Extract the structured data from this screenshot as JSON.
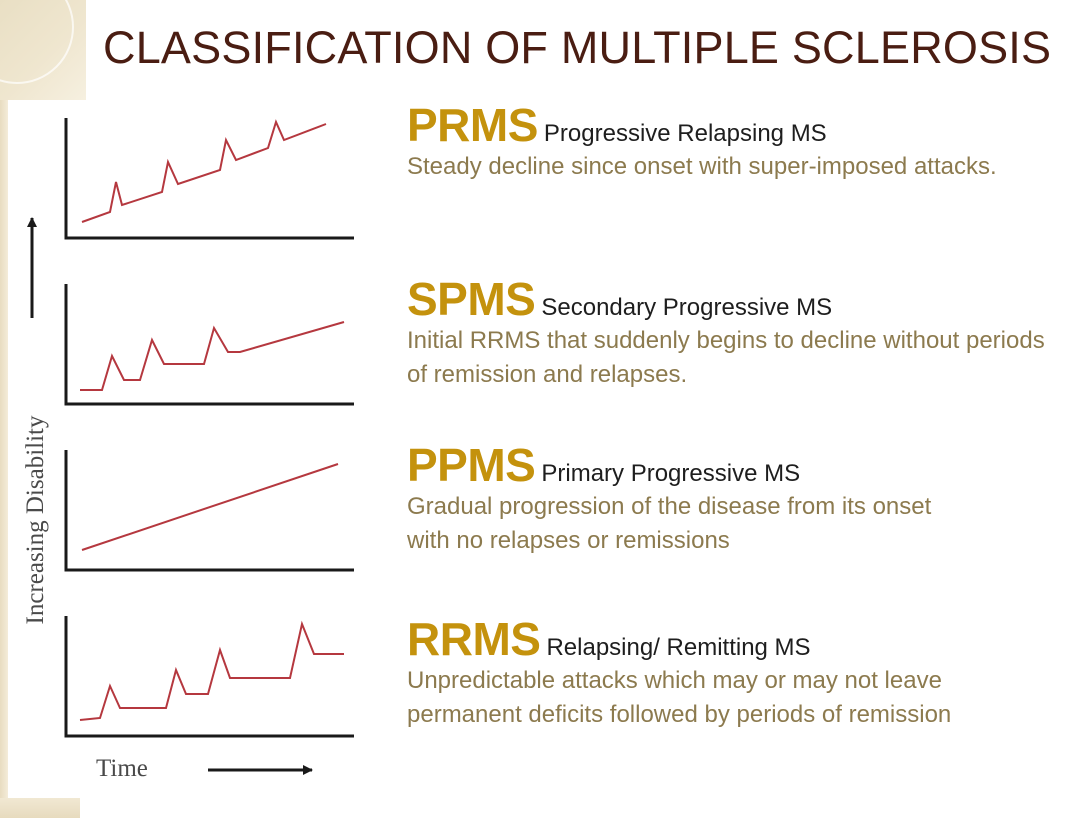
{
  "title": "CLASSIFICATION OF MULTIPLE SCLEROSIS",
  "axes": {
    "ylabel": "Increasing Disability",
    "xlabel": "Time"
  },
  "colors": {
    "title": "#4a1d12",
    "abbr": "#c4920d",
    "desc": "#8c7a4e",
    "line": "#b5383f"
  },
  "types": [
    {
      "abbr": "PRMS",
      "full": "Progressive Relapsing MS",
      "desc": "Steady decline since onset with super-imposed attacks."
    },
    {
      "abbr": "SPMS",
      "full": "Secondary Progressive MS",
      "desc": "Initial RRMS that suddenly begins to decline without periods of remission and relapses."
    },
    {
      "abbr": "PPMS",
      "full": "Primary Progressive MS",
      "desc": "Gradual progression of the disease from its onset with no relapses or remissions"
    },
    {
      "abbr": "RRMS",
      "full": "Relapsing/ Remitting MS",
      "desc": "Unpredictable attacks which may or may not leave permanent deficits followed by periods of remission"
    }
  ]
}
